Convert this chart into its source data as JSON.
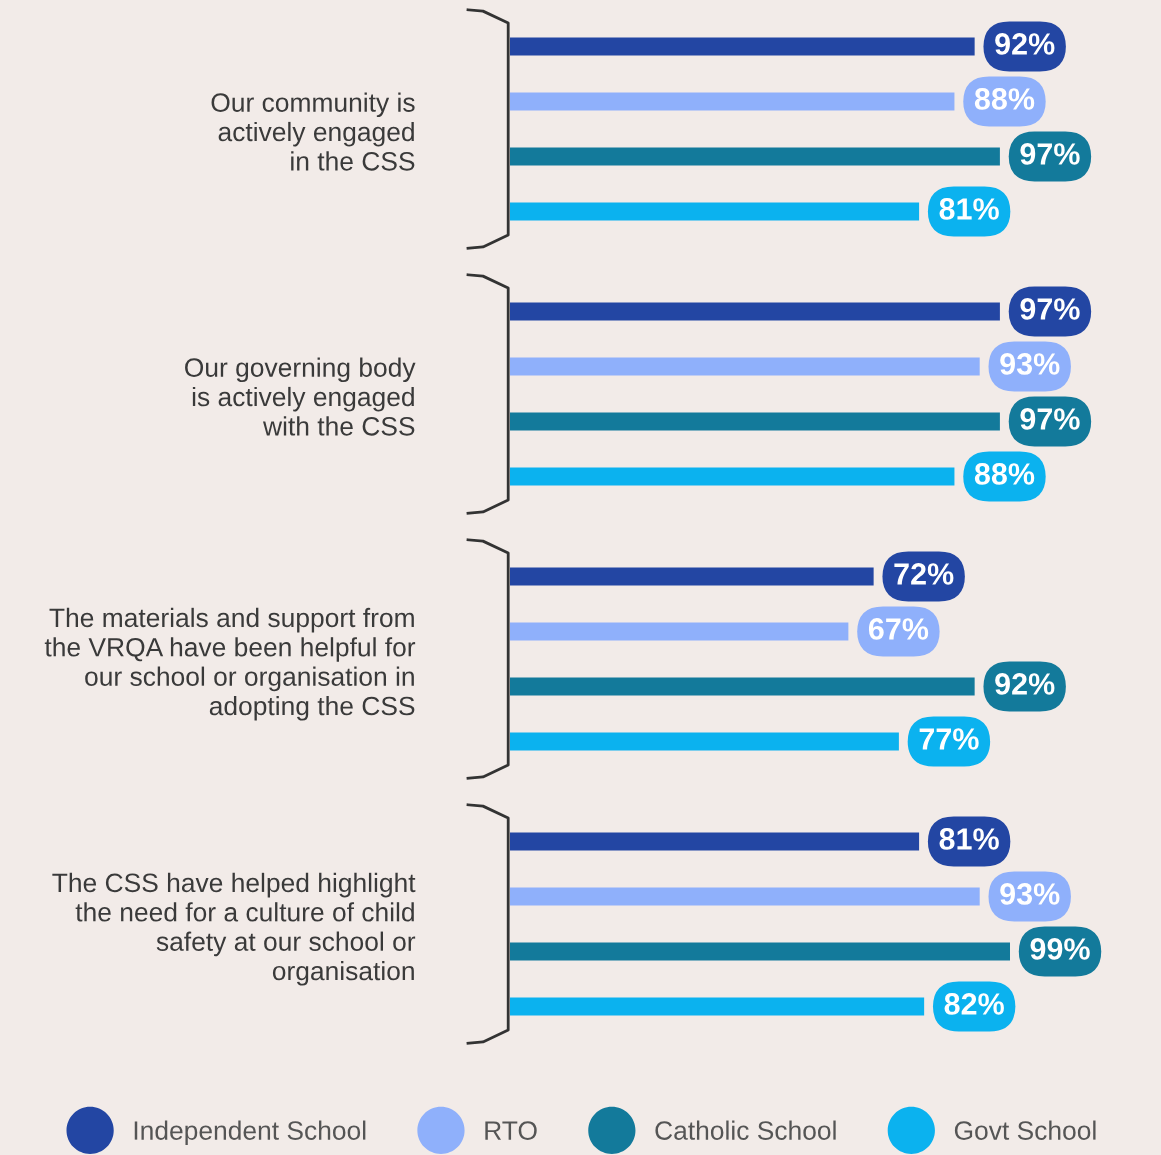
{
  "chart_data": {
    "type": "bar",
    "orientation": "horizontal",
    "legend": "bottom",
    "grid": false,
    "categories": [
      "Our community is\nactively engaged\nin the CSS",
      "Our governing body\nis actively engaged\nwith the CSS",
      "The materials and support from\nthe VRQA have been helpful for\nour school or organisation in\nadopting the CSS",
      "The CSS have helped highlight\nthe need for a culture of child\nsafety at our school or\norganisation"
    ],
    "series": [
      {
        "name": "Independent School",
        "color": "#2346a3",
        "values": [
          92,
          97,
          72,
          81
        ],
        "value_labels": [
          "92%",
          "97%",
          "72%",
          "81%"
        ]
      },
      {
        "name": "RTO",
        "color": "#8fb0fb",
        "values": [
          88,
          93,
          67,
          93
        ],
        "value_labels": [
          "88%",
          "93%",
          "67%",
          "93%"
        ]
      },
      {
        "name": "Catholic School",
        "color": "#137a9b",
        "values": [
          97,
          97,
          92,
          99
        ],
        "value_labels": [
          "97%",
          "97%",
          "92%",
          "99%"
        ]
      },
      {
        "name": "Govt School",
        "color": "#0bb2ef",
        "values": [
          81,
          88,
          77,
          82
        ],
        "value_labels": [
          "81%",
          "88%",
          "77%",
          "82%"
        ]
      }
    ]
  }
}
